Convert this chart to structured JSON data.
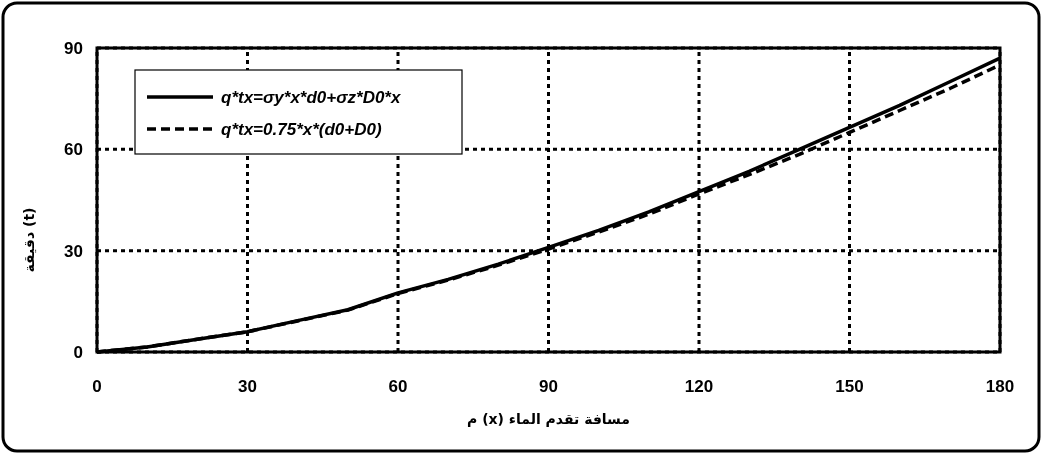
{
  "chart_data": {
    "type": "line",
    "xlabel": "مسافة تقدم الماء (x) م",
    "ylabel": "(t) دقيقة",
    "x": [
      0,
      10,
      20,
      30,
      40,
      50,
      60,
      70,
      80,
      90,
      100,
      110,
      120,
      130,
      140,
      150,
      160,
      170,
      180
    ],
    "series": [
      {
        "name": "q*tx=σy*x*d0+σz*D0*x",
        "color": "#000000",
        "line_style": "solid",
        "values": [
          0,
          1.5,
          3.8,
          6,
          9.3,
          12.5,
          17.5,
          21.5,
          26,
          31,
          36,
          41.5,
          47.5,
          53.5,
          60,
          66.5,
          73,
          80,
          87
        ]
      },
      {
        "name": "q*tx=0.75*x*(d0+D0)",
        "color": "#000000",
        "line_style": "dashed",
        "values": [
          0,
          1.5,
          3.8,
          6,
          9.2,
          12.4,
          17.3,
          21.3,
          25.7,
          30.5,
          35.5,
          40.8,
          46.8,
          52.5,
          58.5,
          65,
          71.5,
          78,
          85
        ]
      }
    ],
    "xlim": [
      0,
      180
    ],
    "ylim": [
      0,
      90
    ],
    "xticks": [
      0,
      30,
      60,
      90,
      120,
      150,
      180
    ],
    "yticks": [
      0,
      30,
      60,
      90
    ],
    "grid": true,
    "legend": "top left"
  }
}
